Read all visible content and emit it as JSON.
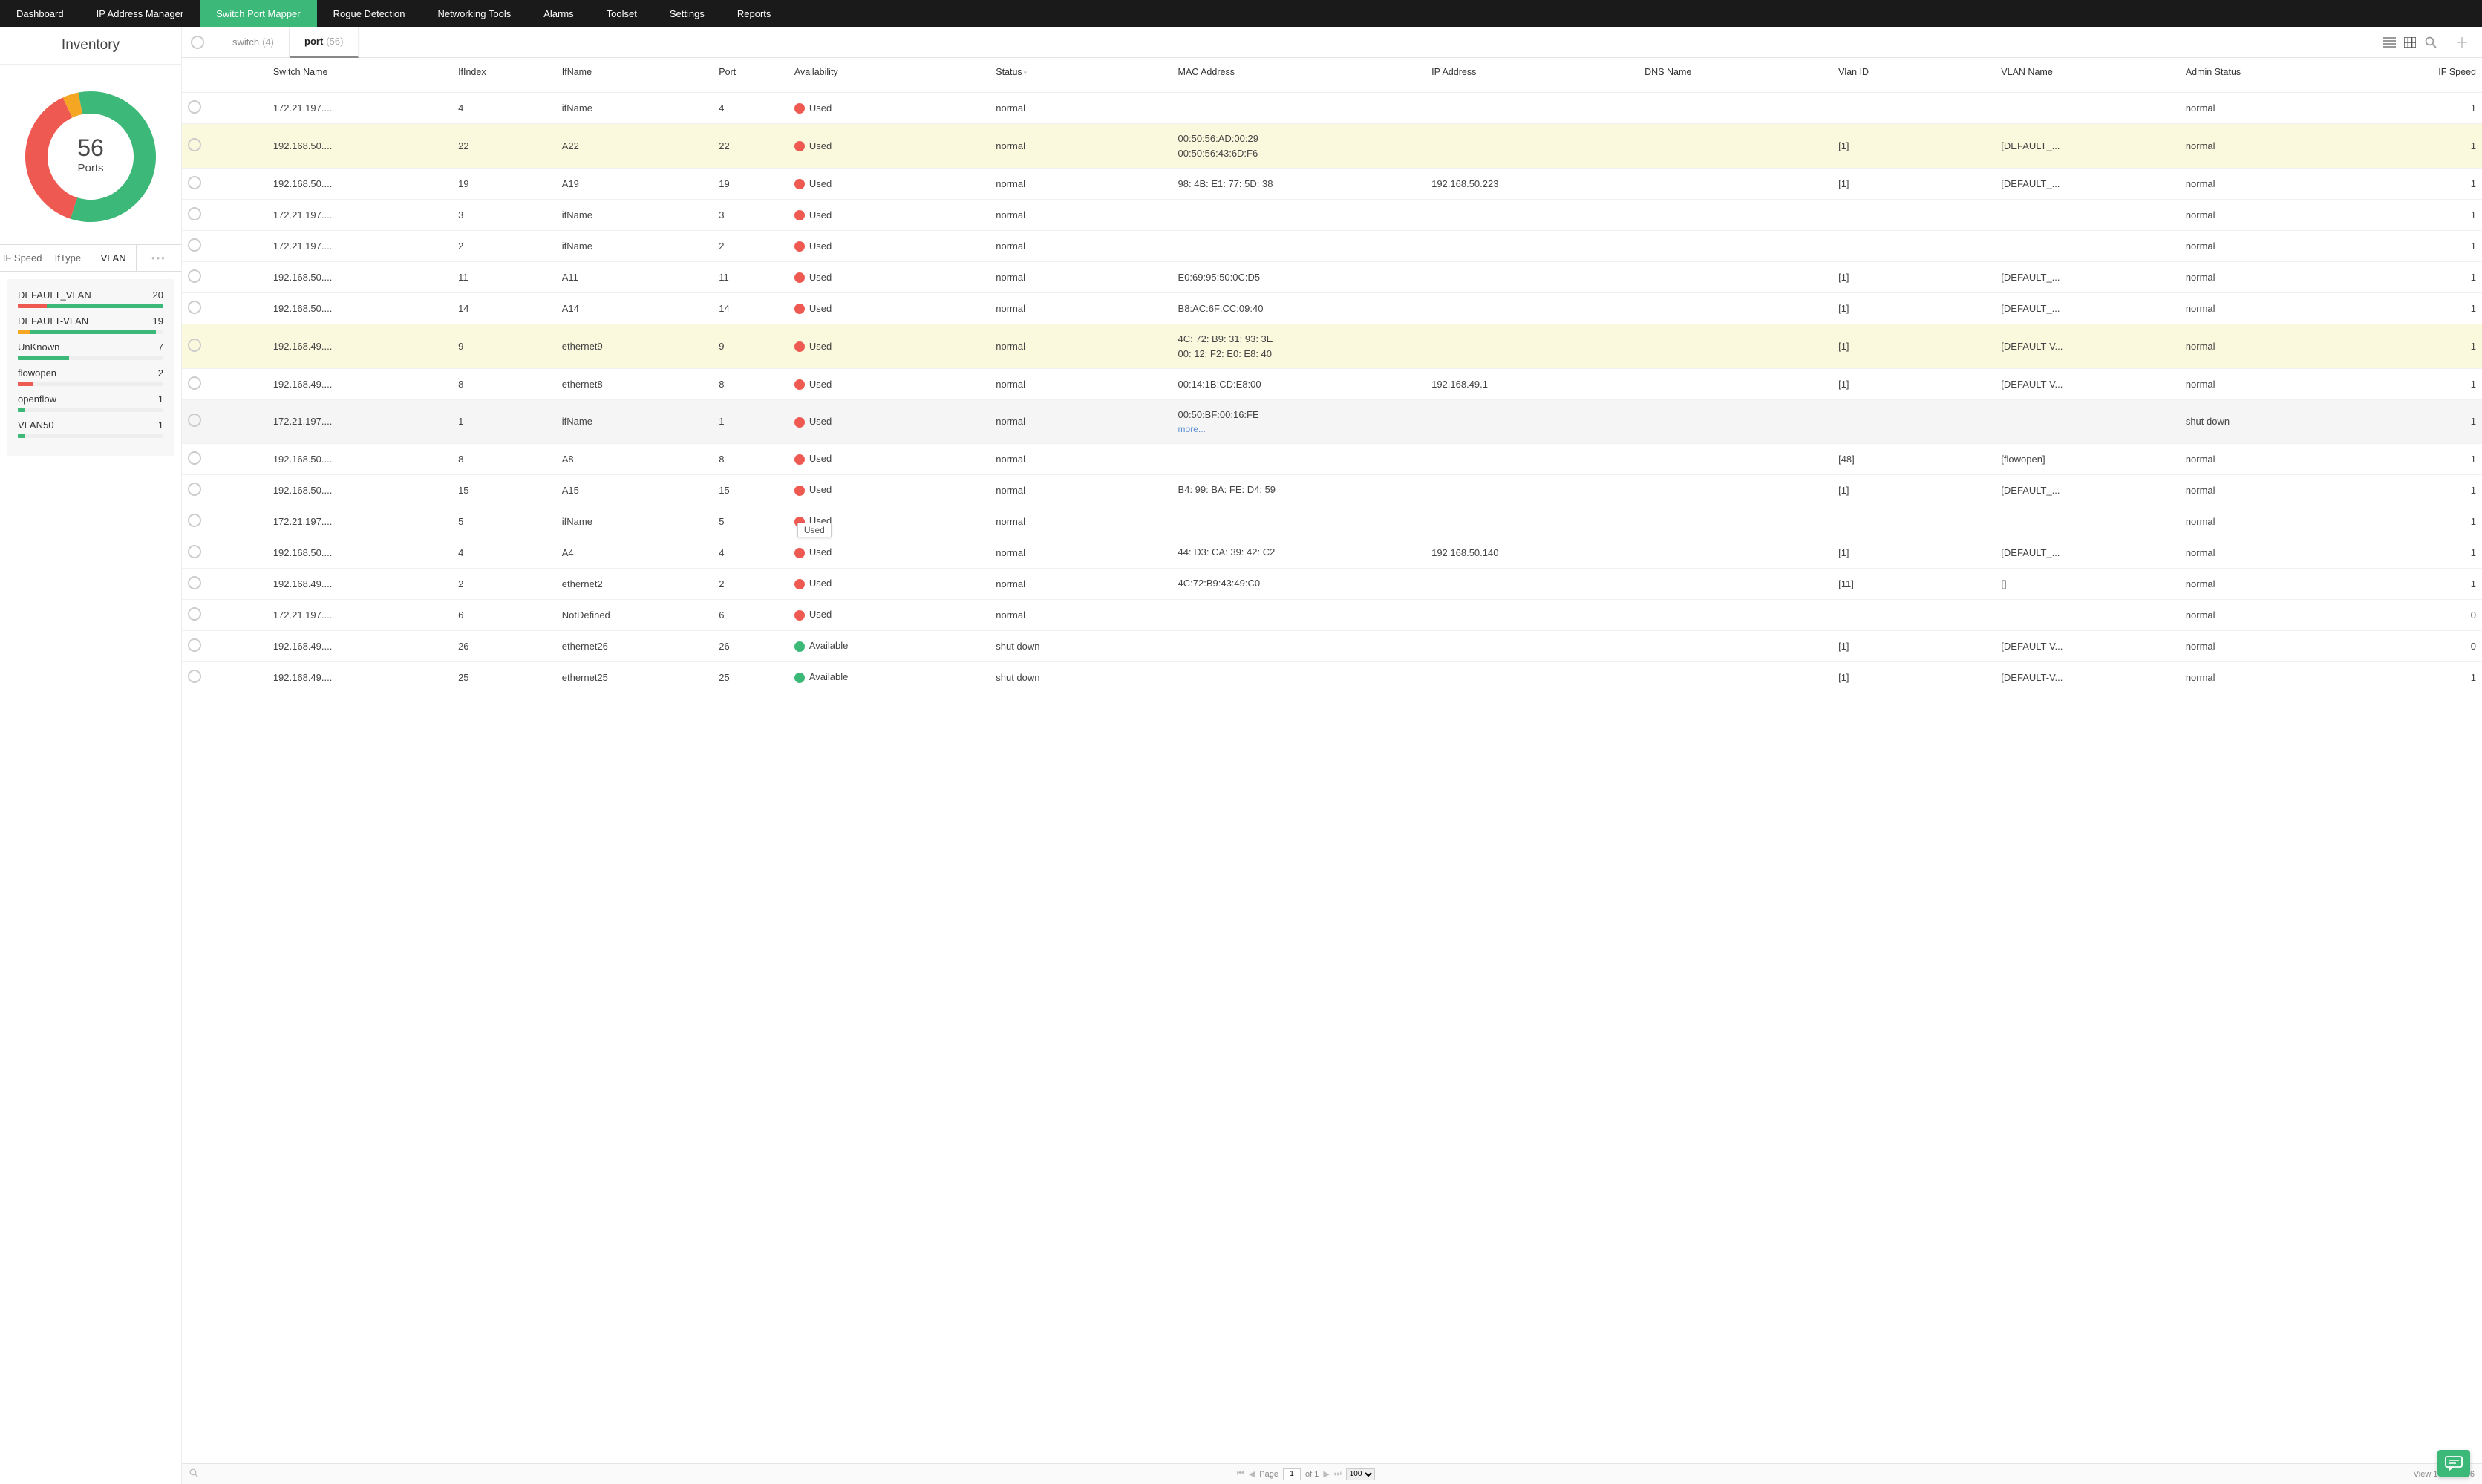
{
  "nav": {
    "items": [
      "Dashboard",
      "IP Address Manager",
      "Switch Port Mapper",
      "Rogue Detection",
      "Networking Tools",
      "Alarms",
      "Toolset",
      "Settings",
      "Reports"
    ],
    "active_index": 2
  },
  "sidebar": {
    "title": "Inventory",
    "donut": {
      "count": "56",
      "label": "Ports",
      "segments": [
        {
          "color": "#3cb878",
          "pct": 55
        },
        {
          "color": "#ee5a52",
          "pct": 38
        },
        {
          "color": "#f5a623",
          "pct": 4
        },
        {
          "color": "#3cb878",
          "pct": 3
        }
      ]
    },
    "tabs": [
      "IF Speed",
      "IfType",
      "VLAN"
    ],
    "tabs_active_index": 2,
    "vlan_list": [
      {
        "name": "DEFAULT_VLAN",
        "count": "20",
        "segs": [
          {
            "c": "#ee5a52",
            "w": 20
          },
          {
            "c": "#3cb878",
            "w": 80
          }
        ]
      },
      {
        "name": "DEFAULT-VLAN",
        "count": "19",
        "segs": [
          {
            "c": "#f5a623",
            "w": 8
          },
          {
            "c": "#3cb878",
            "w": 87
          }
        ]
      },
      {
        "name": "UnKnown",
        "count": "7",
        "segs": [
          {
            "c": "#3cb878",
            "w": 35
          }
        ]
      },
      {
        "name": "flowopen",
        "count": "2",
        "segs": [
          {
            "c": "#ee5a52",
            "w": 10
          }
        ]
      },
      {
        "name": "openflow",
        "count": "1",
        "segs": [
          {
            "c": "#3cb878",
            "w": 5
          }
        ]
      },
      {
        "name": "VLAN50",
        "count": "1",
        "segs": [
          {
            "c": "#3cb878",
            "w": 5
          }
        ]
      }
    ]
  },
  "content_tabs": {
    "tabs": [
      {
        "label": "switch",
        "count": "(4)",
        "active": false
      },
      {
        "label": "port",
        "count": "(56)",
        "active": true
      }
    ]
  },
  "columns": [
    "Switch Name",
    "IfIndex",
    "IfName",
    "Port",
    "Availability",
    "Status",
    "MAC Address",
    "IP Address",
    "DNS Name",
    "Vlan ID",
    "VLAN Name",
    "Admin Status",
    "IF Speed"
  ],
  "availability": {
    "used_label": "Used",
    "available_label": "Available",
    "used_color": "#ee5a52",
    "available_color": "#3cb878"
  },
  "rows": [
    {
      "switch": "172.21.197....",
      "ifx": "4",
      "ifn": "ifName",
      "port": "4",
      "avail": "used",
      "status": "normal",
      "mac": "",
      "ip": "",
      "dns": "",
      "vlanid": "",
      "vlanname": "",
      "admin": "normal",
      "speed": "1",
      "hl": false
    },
    {
      "switch": "192.168.50....",
      "ifx": "22",
      "ifn": "A22",
      "port": "22",
      "avail": "used",
      "status": "normal",
      "mac": "00:50:56:AD:00:29\n00:50:56:43:6D:F6",
      "ip": "",
      "dns": "",
      "vlanid": "[1]",
      "vlanname": "[DEFAULT_...",
      "admin": "normal",
      "speed": "1",
      "hl": true
    },
    {
      "switch": "192.168.50....",
      "ifx": "19",
      "ifn": "A19",
      "port": "19",
      "avail": "used",
      "status": "normal",
      "mac": "98: 4B: E1: 77: 5D: 38",
      "ip": "192.168.50.223",
      "dns": "",
      "vlanid": "[1]",
      "vlanname": "[DEFAULT_...",
      "admin": "normal",
      "speed": "1",
      "hl": false
    },
    {
      "switch": "172.21.197....",
      "ifx": "3",
      "ifn": "ifName",
      "port": "3",
      "avail": "used",
      "status": "normal",
      "mac": "",
      "ip": "",
      "dns": "",
      "vlanid": "",
      "vlanname": "",
      "admin": "normal",
      "speed": "1",
      "hl": false
    },
    {
      "switch": "172.21.197....",
      "ifx": "2",
      "ifn": "ifName",
      "port": "2",
      "avail": "used",
      "status": "normal",
      "mac": "",
      "ip": "",
      "dns": "",
      "vlanid": "",
      "vlanname": "",
      "admin": "normal",
      "speed": "1",
      "hl": false
    },
    {
      "switch": "192.168.50....",
      "ifx": "11",
      "ifn": "A11",
      "port": "11",
      "avail": "used",
      "status": "normal",
      "mac": "E0:69:95:50:0C:D5",
      "ip": "",
      "dns": "",
      "vlanid": "[1]",
      "vlanname": "[DEFAULT_...",
      "admin": "normal",
      "speed": "1",
      "hl": false
    },
    {
      "switch": "192.168.50....",
      "ifx": "14",
      "ifn": "A14",
      "port": "14",
      "avail": "used",
      "status": "normal",
      "mac": "B8:AC:6F:CC:09:40",
      "ip": "",
      "dns": "",
      "vlanid": "[1]",
      "vlanname": "[DEFAULT_...",
      "admin": "normal",
      "speed": "1",
      "hl": false
    },
    {
      "switch": "192.168.49....",
      "ifx": "9",
      "ifn": "ethernet9",
      "port": "9",
      "avail": "used",
      "status": "normal",
      "mac": "4C: 72: B9: 31: 93: 3E\n00: 12: F2: E0: E8: 40",
      "ip": "",
      "dns": "",
      "vlanid": "[1]",
      "vlanname": "[DEFAULT-V...",
      "admin": "normal",
      "speed": "1",
      "hl": true
    },
    {
      "switch": "192.168.49....",
      "ifx": "8",
      "ifn": "ethernet8",
      "port": "8",
      "avail": "used",
      "status": "normal",
      "mac": "00:14:1B:CD:E8:00",
      "ip": "192.168.49.1",
      "dns": "",
      "vlanid": "[1]",
      "vlanname": "[DEFAULT-V...",
      "admin": "normal",
      "speed": "1",
      "hl": false
    },
    {
      "switch": "172.21.197....",
      "ifx": "1",
      "ifn": "ifName",
      "port": "1",
      "avail": "used",
      "status": "normal",
      "mac": "00:50:BF:00:16:FE",
      "mac_more": "more...",
      "ip": "",
      "dns": "",
      "vlanid": "",
      "vlanname": "",
      "admin": "shut down",
      "speed": "1",
      "hov": true
    },
    {
      "switch": "192.168.50....",
      "ifx": "8",
      "ifn": "A8",
      "port": "8",
      "avail": "used",
      "status": "normal",
      "mac": "",
      "ip": "",
      "dns": "",
      "vlanid": "[48]",
      "vlanname": "[flowopen]",
      "admin": "normal",
      "speed": "1",
      "hl": false
    },
    {
      "switch": "192.168.50....",
      "ifx": "15",
      "ifn": "A15",
      "port": "15",
      "avail": "used",
      "status": "normal",
      "mac": "B4: 99: BA: FE: D4: 59",
      "ip": "",
      "dns": "",
      "vlanid": "[1]",
      "vlanname": "[DEFAULT_...",
      "admin": "normal",
      "speed": "1",
      "hl": false
    },
    {
      "switch": "172.21.197....",
      "ifx": "5",
      "ifn": "ifName",
      "port": "5",
      "avail": "used",
      "status": "normal",
      "mac": "",
      "ip": "",
      "dns": "",
      "vlanid": "",
      "vlanname": "",
      "admin": "normal",
      "speed": "1",
      "hl": false
    },
    {
      "switch": "192.168.50....",
      "ifx": "4",
      "ifn": "A4",
      "port": "4",
      "avail": "used",
      "status": "normal",
      "mac": "44: D3: CA: 39: 42: C2",
      "ip": "192.168.50.140",
      "dns": "",
      "vlanid": "[1]",
      "vlanname": "[DEFAULT_...",
      "admin": "normal",
      "speed": "1",
      "hl": false,
      "tooltip": "Used"
    },
    {
      "switch": "192.168.49....",
      "ifx": "2",
      "ifn": "ethernet2",
      "port": "2",
      "avail": "used",
      "status": "normal",
      "mac": "4C:72:B9:43:49:C0",
      "ip": "",
      "dns": "",
      "vlanid": "[11]",
      "vlanname": "[]",
      "admin": "normal",
      "speed": "1",
      "hl": false
    },
    {
      "switch": "172.21.197....",
      "ifx": "6",
      "ifn": "NotDefined",
      "port": "6",
      "avail": "used",
      "status": "normal",
      "mac": "",
      "ip": "",
      "dns": "",
      "vlanid": "",
      "vlanname": "",
      "admin": "normal",
      "speed": "0",
      "hl": false
    },
    {
      "switch": "192.168.49....",
      "ifx": "26",
      "ifn": "ethernet26",
      "port": "26",
      "avail": "available",
      "status": "shut down",
      "mac": "",
      "ip": "",
      "dns": "",
      "vlanid": "[1]",
      "vlanname": "[DEFAULT-V...",
      "admin": "normal",
      "speed": "0",
      "hl": false
    },
    {
      "switch": "192.168.49....",
      "ifx": "25",
      "ifn": "ethernet25",
      "port": "25",
      "avail": "available",
      "status": "shut down",
      "mac": "",
      "ip": "",
      "dns": "",
      "vlanid": "[1]",
      "vlanname": "[DEFAULT-V...",
      "admin": "normal",
      "speed": "1",
      "hl": false
    }
  ],
  "pager": {
    "page_label": "Page",
    "page_current": "1",
    "page_of": "of 1",
    "page_size": "100",
    "view_text": "View 1 - 56 of 56"
  }
}
